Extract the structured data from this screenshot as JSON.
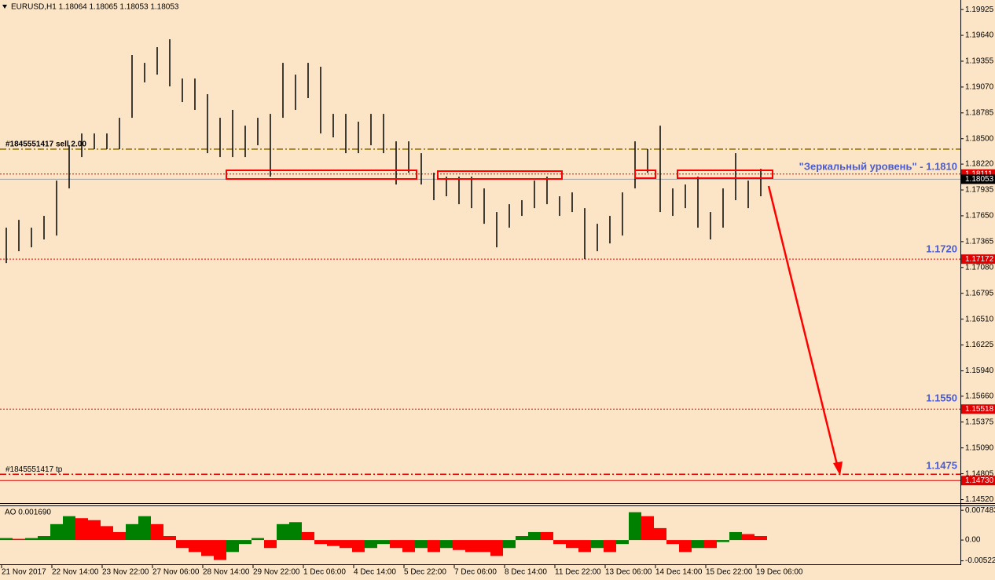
{
  "chart_data": {
    "type": "ohlc",
    "header": "EURUSD,H1  1.18064 1.18065 1.18053 1.18053",
    "ylim": [
      1.1449,
      1.2003
    ],
    "yticks": [
      {
        "value": 1.19925,
        "label": "1.19925"
      },
      {
        "value": 1.1964,
        "label": "1.19640"
      },
      {
        "value": 1.19355,
        "label": "1.19355"
      },
      {
        "value": 1.1907,
        "label": "1.19070"
      },
      {
        "value": 1.18785,
        "label": "1.18785"
      },
      {
        "value": 1.185,
        "label": "1.18500"
      },
      {
        "value": 1.1822,
        "label": "1.18220"
      },
      {
        "value": 1.17935,
        "label": "1.17935"
      },
      {
        "value": 1.1765,
        "label": "1.17650"
      },
      {
        "value": 1.17365,
        "label": "1.17365"
      },
      {
        "value": 1.1708,
        "label": "1.17080"
      },
      {
        "value": 1.16795,
        "label": "1.16795"
      },
      {
        "value": 1.1651,
        "label": "1.16510"
      },
      {
        "value": 1.16225,
        "label": "1.16225"
      },
      {
        "value": 1.1594,
        "label": "1.15940"
      },
      {
        "value": 1.1566,
        "label": "1.15660"
      },
      {
        "value": 1.15375,
        "label": "1.15375"
      },
      {
        "value": 1.1509,
        "label": "1.15090"
      },
      {
        "value": 1.14805,
        "label": "1.14805"
      },
      {
        "value": 1.1452,
        "label": "1.14520"
      }
    ],
    "xlabels": [
      "21 Nov 2017",
      "22 Nov 14:00",
      "23 Nov 22:00",
      "27 Nov 06:00",
      "28 Nov 14:00",
      "29 Nov 22:00",
      "1 Dec 06:00",
      "4 Dec 14:00",
      "5 Dec 22:00",
      "7 Dec 06:00",
      "8 Dec 14:00",
      "11 Dec 22:00",
      "13 Dec 06:00",
      "14 Dec 14:00",
      "15 Dec 22:00",
      "19 Dec 06:00"
    ],
    "color": "#000000",
    "high": [
      1.17519,
      1.17605,
      1.17519,
      1.17649,
      1.18038,
      1.18428,
      1.18558,
      1.18558,
      1.18558,
      1.18731,
      1.19424,
      1.19337,
      1.1951,
      1.19597,
      1.19164,
      1.19164,
      1.18991,
      1.18731,
      1.18818,
      1.18644,
      1.18731,
      1.18774,
      1.19337,
      1.19207,
      1.19337,
      1.19294,
      1.18774,
      1.18774,
      1.18688,
      1.18774,
      1.18774,
      1.18471,
      1.18471,
      1.18341,
      1.18125,
      1.18082,
      1.18082,
      1.18082,
      1.17952,
      1.17692,
      1.17778,
      1.17822,
      1.18038,
      1.18082,
      1.17865,
      1.17908,
      1.17735,
      1.17562,
      1.17649,
      1.17908,
      1.18471,
      1.18385,
      1.18644,
      1.17952,
      1.17995,
      1.18082,
      1.17692,
      1.17952,
      1.18341,
      1.18038,
      1.18168
    ],
    "low": [
      1.17129,
      1.17259,
      1.17302,
      1.17389,
      1.17432,
      1.17952,
      1.18298,
      1.18385,
      1.18385,
      1.18385,
      1.18731,
      1.19121,
      1.19207,
      1.19077,
      1.18904,
      1.18818,
      1.18341,
      1.18298,
      1.18298,
      1.18298,
      1.18428,
      1.18082,
      1.18731,
      1.18818,
      1.18948,
      1.18558,
      1.18515,
      1.18341,
      1.18341,
      1.18428,
      1.18341,
      1.17995,
      1.18125,
      1.17995,
      1.17822,
      1.17865,
      1.17778,
      1.17735,
      1.17562,
      1.17302,
      1.17519,
      1.17649,
      1.17735,
      1.17778,
      1.17649,
      1.17692,
      1.17172,
      1.17259,
      1.17345,
      1.17432,
      1.17952,
      1.18125,
      1.17692,
      1.17649,
      1.17735,
      1.17519,
      1.17389,
      1.17519,
      1.17822,
      1.17735,
      1.17865
    ],
    "levels": [
      {
        "price": 1.18385,
        "text": "#1845551417 sell 2.00",
        "color": "#8b7500",
        "style": "dashdot"
      },
      {
        "price": 1.18111,
        "label": "1.18111",
        "color": "#e00000",
        "style": "dotted"
      },
      {
        "price": 1.18053,
        "label": "1.18053",
        "color": "#a0a0a0",
        "label_bg": "#000000",
        "style": "solid"
      },
      {
        "price": 1.17172,
        "label": "1.17172",
        "color": "#e00000",
        "style": "dotted"
      },
      {
        "price": 1.15518,
        "label": "1.15518",
        "color": "#e00000",
        "style": "dotted"
      },
      {
        "price": 1.148,
        "text": "#1845551417 tp",
        "color": "#e00000",
        "style": "dashdot"
      },
      {
        "price": 1.1473,
        "label": "1.14730",
        "color": "#e00000",
        "style": "solid"
      }
    ],
    "annotations": [
      "\"Зеркальный уровень\" - 1.1810",
      "1.1720",
      "1.1550",
      "1.1475"
    ],
    "ao": {
      "title": "AO 0.001690",
      "ylim": [
        -0.0059,
        0.0085
      ],
      "yticks": [
        0.007483,
        {
          "value": 0,
          "label": "0.00"
        },
        -0.005224
      ],
      "up_color": "#008000",
      "down_color": "#ff0000",
      "values": [
        0.0005,
        0.0003,
        0.0005,
        0.001,
        0.004,
        0.006,
        0.0055,
        0.005,
        0.0035,
        0.002,
        0.004,
        0.006,
        0.004,
        0.001,
        -0.002,
        -0.003,
        -0.004,
        -0.005,
        -0.003,
        -0.001,
        0.0005,
        -0.002,
        0.004,
        0.0045,
        0.002,
        -0.001,
        -0.0015,
        -0.002,
        -0.003,
        -0.002,
        -0.001,
        -0.002,
        -0.003,
        -0.002,
        -0.003,
        -0.002,
        -0.0025,
        -0.003,
        -0.003,
        -0.004,
        -0.002,
        0.001,
        0.002,
        0.002,
        -0.001,
        -0.002,
        -0.003,
        -0.002,
        -0.003,
        -0.001,
        0.007,
        0.006,
        0.003,
        -0.001,
        -0.003,
        -0.002,
        -0.002,
        -0.0005,
        0.002,
        0.0015,
        0.001
      ]
    }
  }
}
